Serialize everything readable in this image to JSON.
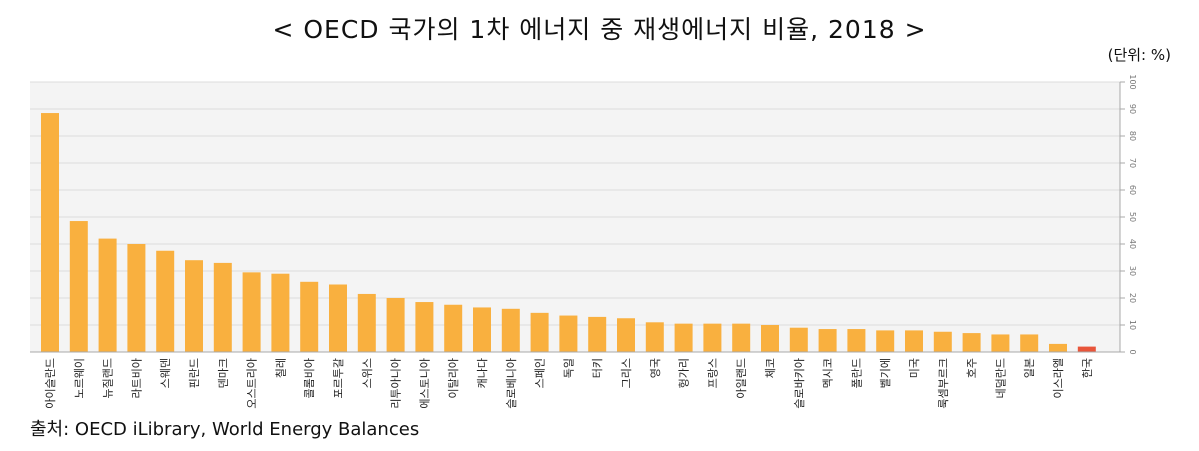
{
  "title": "< OECD 국가의 1차 에너지 중 재생에너지 비율, 2018 >",
  "unit": "(단위: %)",
  "source": "출처: OECD iLibrary, World Energy Balances",
  "chart_data": {
    "type": "bar",
    "categories": [
      "아이슬란드",
      "노르웨이",
      "뉴질랜드",
      "라트비아",
      "스웨덴",
      "핀란드",
      "덴마크",
      "오스트리아",
      "칠레",
      "콜롬비아",
      "포르투갈",
      "스위스",
      "리투아니아",
      "에스토니아",
      "이탈리아",
      "캐나다",
      "슬로베니아",
      "스페인",
      "독일",
      "터키",
      "그리스",
      "영국",
      "헝가리",
      "프랑스",
      "아일랜드",
      "체코",
      "슬로바키아",
      "멕시코",
      "폴란드",
      "벨기에",
      "미국",
      "룩셈부르크",
      "호주",
      "네덜란드",
      "일본",
      "이스라엘",
      "한국"
    ],
    "values": [
      88.5,
      48.5,
      42,
      40,
      37.5,
      34,
      33,
      29.5,
      29,
      26,
      25,
      21.5,
      20,
      18.5,
      17.5,
      16.5,
      16,
      14.5,
      13.5,
      13,
      12.5,
      11,
      10.5,
      10.5,
      10.5,
      10,
      9,
      8.5,
      8.5,
      8,
      8,
      7.5,
      7,
      6.5,
      6.5,
      3,
      2
    ],
    "colors": {
      "default": "#F9B03F",
      "highlight": "#E8553A",
      "grid": "#DCDCDC",
      "axis": "#A8A8A8",
      "plot_bg": "#F4F4F4"
    },
    "highlight_category": "한국",
    "ylim": [
      0,
      100
    ],
    "yticks": [
      0,
      10,
      20,
      30,
      40,
      50,
      60,
      70,
      80,
      90,
      100
    ],
    "grid": true,
    "y_axis_position": "right"
  }
}
